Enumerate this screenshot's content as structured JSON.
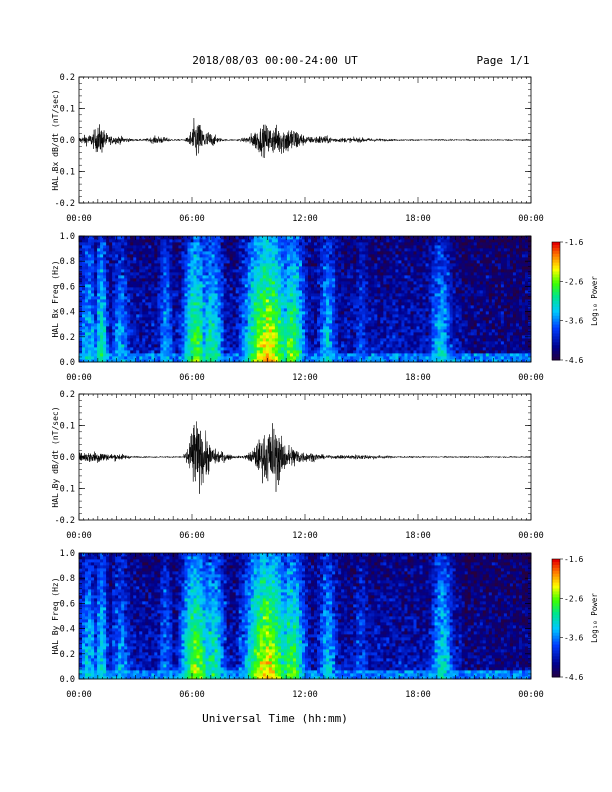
{
  "header": {
    "title": "2018/08/03  00:00-24:00 UT",
    "page": "Page 1/1"
  },
  "footer": {
    "xlabel": "Universal Time (hh:mm)"
  },
  "x_ticks": [
    "00:00",
    "06:00",
    "12:00",
    "18:00",
    "00:00"
  ],
  "colorbar": {
    "label": "Log₁₀ Power",
    "ticks": [
      "-1.6",
      "-2.6",
      "-3.6",
      "-4.6"
    ]
  },
  "chart_data": [
    {
      "type": "line",
      "ylabel": "HAL Bx dB/dt (nT/sec)",
      "xlim": [
        0,
        24
      ],
      "ylim": [
        -0.2,
        0.2
      ],
      "y_ticks": [
        "0.2",
        "0.1",
        "0.0",
        "-0.1",
        "-0.2"
      ],
      "bursts": [
        {
          "t": 0.4,
          "w": 0.5,
          "amp": 0.015
        },
        {
          "t": 1.1,
          "w": 0.35,
          "amp": 0.05
        },
        {
          "t": 2.0,
          "w": 0.6,
          "amp": 0.012
        },
        {
          "t": 4.2,
          "w": 0.5,
          "amp": 0.012
        },
        {
          "t": 6.2,
          "w": 0.3,
          "amp": 0.07
        },
        {
          "t": 6.8,
          "w": 0.5,
          "amp": 0.03
        },
        {
          "t": 9.8,
          "w": 0.7,
          "amp": 0.05
        },
        {
          "t": 10.8,
          "w": 0.6,
          "amp": 0.04
        },
        {
          "t": 11.5,
          "w": 0.5,
          "amp": 0.03
        },
        {
          "t": 12.8,
          "w": 0.6,
          "amp": 0.012
        },
        {
          "t": 14.5,
          "w": 1.5,
          "amp": 0.006
        }
      ],
      "baseline_amp": 0.003
    },
    {
      "type": "heatmap",
      "ylabel": "HAL Bx Freq (Hz)",
      "xlim": [
        0,
        24
      ],
      "ylim": [
        0,
        1.0
      ],
      "y_ticks": [
        "1.0",
        "0.8",
        "0.6",
        "0.4",
        "0.2",
        "0.0"
      ],
      "z_range": [
        -4.6,
        -1.6
      ],
      "activity": [
        {
          "t": 0.5,
          "w": 0.6,
          "lvl": 0.45
        },
        {
          "t": 1.2,
          "w": 0.4,
          "lvl": 0.55
        },
        {
          "t": 2.2,
          "w": 0.6,
          "lvl": 0.4
        },
        {
          "t": 4.6,
          "w": 0.5,
          "lvl": 0.4
        },
        {
          "t": 6.2,
          "w": 0.8,
          "lvl": 0.65
        },
        {
          "t": 7.0,
          "w": 0.8,
          "lvl": 0.55
        },
        {
          "t": 10.0,
          "w": 1.4,
          "lvl": 0.8
        },
        {
          "t": 11.3,
          "w": 0.8,
          "lvl": 0.65
        },
        {
          "t": 13.2,
          "w": 0.6,
          "lvl": 0.45
        },
        {
          "t": 15.0,
          "w": 0.5,
          "lvl": 0.3
        },
        {
          "t": 19.2,
          "w": 0.7,
          "lvl": 0.45
        }
      ]
    },
    {
      "type": "line",
      "ylabel": "HAL By dB/dt (nT/sec)",
      "xlim": [
        0,
        24
      ],
      "ylim": [
        -0.2,
        0.2
      ],
      "y_ticks": [
        "0.2",
        "0.1",
        "0.0",
        "-0.1",
        "-0.2"
      ],
      "bursts": [
        {
          "t": 0.3,
          "w": 0.5,
          "amp": 0.015
        },
        {
          "t": 1.0,
          "w": 0.4,
          "amp": 0.02
        },
        {
          "t": 2.0,
          "w": 0.6,
          "amp": 0.01
        },
        {
          "t": 6.1,
          "w": 0.3,
          "amp": 0.12
        },
        {
          "t": 6.6,
          "w": 0.4,
          "amp": 0.08
        },
        {
          "t": 7.4,
          "w": 0.6,
          "amp": 0.02
        },
        {
          "t": 9.8,
          "w": 0.6,
          "amp": 0.07
        },
        {
          "t": 10.4,
          "w": 0.4,
          "amp": 0.09
        },
        {
          "t": 11.2,
          "w": 0.6,
          "amp": 0.04
        },
        {
          "t": 12.3,
          "w": 0.6,
          "amp": 0.012
        },
        {
          "t": 14.8,
          "w": 1.5,
          "amp": 0.006
        }
      ],
      "baseline_amp": 0.003
    },
    {
      "type": "heatmap",
      "ylabel": "HAL By Freq (Hz)",
      "xlim": [
        0,
        24
      ],
      "ylim": [
        0,
        1.0
      ],
      "y_ticks": [
        "1.0",
        "0.8",
        "0.6",
        "0.4",
        "0.2",
        "0.0"
      ],
      "z_range": [
        -4.6,
        -1.6
      ],
      "activity": [
        {
          "t": 0.5,
          "w": 0.6,
          "lvl": 0.45
        },
        {
          "t": 1.2,
          "w": 0.4,
          "lvl": 0.5
        },
        {
          "t": 2.2,
          "w": 0.6,
          "lvl": 0.4
        },
        {
          "t": 4.6,
          "w": 0.5,
          "lvl": 0.35
        },
        {
          "t": 6.2,
          "w": 0.9,
          "lvl": 0.7
        },
        {
          "t": 7.1,
          "w": 0.8,
          "lvl": 0.55
        },
        {
          "t": 10.0,
          "w": 1.4,
          "lvl": 0.8
        },
        {
          "t": 11.3,
          "w": 0.8,
          "lvl": 0.65
        },
        {
          "t": 13.2,
          "w": 0.6,
          "lvl": 0.45
        },
        {
          "t": 15.0,
          "w": 0.5,
          "lvl": 0.3
        },
        {
          "t": 19.3,
          "w": 0.7,
          "lvl": 0.5
        }
      ]
    }
  ]
}
